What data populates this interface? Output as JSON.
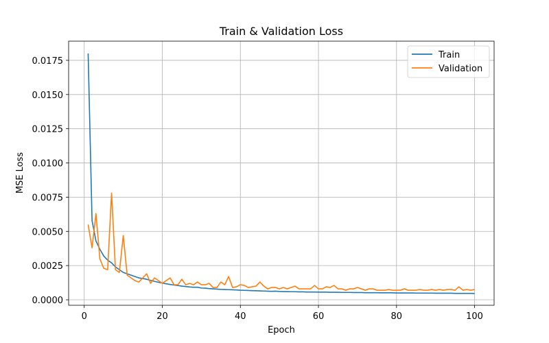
{
  "chart_data": {
    "type": "line",
    "title": "Train & Validation Loss",
    "xlabel": "Epoch",
    "ylabel": "MSE Loss",
    "xlim": [
      -4,
      105
    ],
    "ylim": [
      -0.0004,
      0.0189
    ],
    "xticks": [
      0,
      20,
      40,
      60,
      80,
      100
    ],
    "xtick_labels": [
      "0",
      "20",
      "40",
      "60",
      "80",
      "100"
    ],
    "yticks": [
      0.0,
      0.0025,
      0.005,
      0.0075,
      0.01,
      0.0125,
      0.015,
      0.0175
    ],
    "ytick_labels": [
      "0.0000",
      "0.0025",
      "0.0050",
      "0.0075",
      "0.0100",
      "0.0125",
      "0.0150",
      "0.0175"
    ],
    "grid": true,
    "legend": "top-right",
    "x": [
      1,
      2,
      3,
      4,
      5,
      6,
      7,
      8,
      9,
      10,
      11,
      12,
      13,
      14,
      15,
      16,
      17,
      18,
      19,
      20,
      21,
      22,
      23,
      24,
      25,
      26,
      27,
      28,
      29,
      30,
      31,
      32,
      33,
      34,
      35,
      36,
      37,
      38,
      39,
      40,
      41,
      42,
      43,
      44,
      45,
      46,
      47,
      48,
      49,
      50,
      51,
      52,
      53,
      54,
      55,
      56,
      57,
      58,
      59,
      60,
      61,
      62,
      63,
      64,
      65,
      66,
      67,
      68,
      69,
      70,
      71,
      72,
      73,
      74,
      75,
      76,
      77,
      78,
      79,
      80,
      81,
      82,
      83,
      84,
      85,
      86,
      87,
      88,
      89,
      90,
      91,
      92,
      93,
      94,
      95,
      96,
      97,
      98,
      99,
      100
    ],
    "series": [
      {
        "name": "Train",
        "color": "#1f77b4",
        "values": [
          0.018,
          0.0058,
          0.0043,
          0.0037,
          0.0032,
          0.0029,
          0.0027,
          0.0024,
          0.0022,
          0.002,
          0.0019,
          0.0018,
          0.0017,
          0.0016,
          0.00155,
          0.0015,
          0.00142,
          0.00135,
          0.00128,
          0.00122,
          0.00117,
          0.00112,
          0.00108,
          0.00104,
          0.001,
          0.00097,
          0.00094,
          0.00092,
          0.00092,
          0.00086,
          0.00085,
          0.00082,
          0.0008,
          0.00078,
          0.00076,
          0.00075,
          0.00074,
          0.00073,
          0.00072,
          0.0007,
          0.00069,
          0.00068,
          0.00067,
          0.00066,
          0.00065,
          0.00064,
          0.00063,
          0.00062,
          0.00063,
          0.00061,
          0.0006,
          0.0006,
          0.00059,
          0.00059,
          0.00058,
          0.00058,
          0.00057,
          0.00057,
          0.00057,
          0.00056,
          0.00056,
          0.00056,
          0.00055,
          0.00055,
          0.00055,
          0.00054,
          0.00054,
          0.00054,
          0.00053,
          0.00053,
          0.00053,
          0.00052,
          0.00052,
          0.00052,
          0.00052,
          0.00051,
          0.00051,
          0.00051,
          0.00051,
          0.0005,
          0.0005,
          0.0005,
          0.0005,
          0.0005,
          0.00049,
          0.00049,
          0.00049,
          0.00049,
          0.00049,
          0.00048,
          0.00048,
          0.00048,
          0.00048,
          0.00048,
          0.00047,
          0.00047,
          0.00047,
          0.00047,
          0.00047,
          0.00046
        ]
      },
      {
        "name": "Validation",
        "color": "#ff7f0e",
        "values": [
          0.0055,
          0.0038,
          0.0063,
          0.003,
          0.0023,
          0.0022,
          0.0078,
          0.0022,
          0.002,
          0.0047,
          0.0018,
          0.0016,
          0.0014,
          0.0013,
          0.0016,
          0.0019,
          0.0012,
          0.0016,
          0.0014,
          0.0012,
          0.0014,
          0.0016,
          0.0011,
          0.0011,
          0.0015,
          0.0011,
          0.0012,
          0.0011,
          0.0013,
          0.0011,
          0.0011,
          0.0012,
          0.0009,
          0.0009,
          0.0013,
          0.0011,
          0.0017,
          0.0009,
          0.00095,
          0.0011,
          0.00105,
          0.0009,
          0.00095,
          0.001,
          0.0013,
          0.001,
          0.0008,
          0.0009,
          0.0009,
          0.0008,
          0.0009,
          0.0008,
          0.0009,
          0.001,
          0.0008,
          0.0008,
          0.0008,
          0.0008,
          0.00105,
          0.0008,
          0.0008,
          0.00095,
          0.0009,
          0.00105,
          0.0008,
          0.0008,
          0.0007,
          0.0008,
          0.0008,
          0.0009,
          0.0008,
          0.0007,
          0.0008,
          0.0008,
          0.0007,
          0.0007,
          0.0007,
          0.00075,
          0.0007,
          0.0007,
          0.0007,
          0.0008,
          0.0007,
          0.0007,
          0.0007,
          0.00075,
          0.0007,
          0.0007,
          0.00075,
          0.0007,
          0.00075,
          0.0007,
          0.00075,
          0.00075,
          0.0007,
          0.00095,
          0.0007,
          0.00075,
          0.0007,
          0.00075
        ]
      }
    ]
  }
}
